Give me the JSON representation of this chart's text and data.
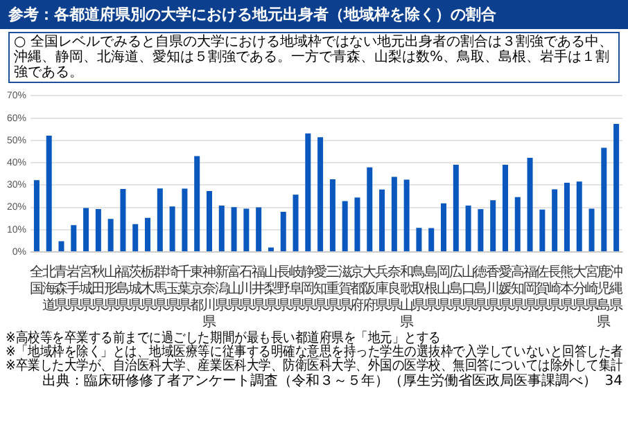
{
  "chart_data": {
    "type": "bar",
    "title": "参考：各都道府県別の大学における地元出身者（地域枠を除く）の割合",
    "subtitle": "○ 全国レベルでみると自県の大学における地域枠ではない地元出身者の割合は３割強である中、沖縄、静岡、北海道、愛知は５割強である。一方で青森、山梨は数%、鳥取、島根、岩手は１割強である。",
    "categories": [
      "全国",
      "北海道",
      "青森県",
      "岩手県",
      "宮城県",
      "秋田県",
      "山形県",
      "福島県",
      "茨城県",
      "栃木県",
      "群馬県",
      "埼玉県",
      "千葉県",
      "東京都",
      "神奈川県",
      "新潟県",
      "富山県",
      "石川県",
      "福井県",
      "山梨県",
      "長野県",
      "岐阜県",
      "静岡県",
      "愛知県",
      "三重県",
      "滋賀県",
      "京都府",
      "大阪府",
      "兵庫県",
      "奈良県",
      "和歌山県",
      "鳥取県",
      "島根県",
      "岡山県",
      "広島県",
      "山口県",
      "徳島県",
      "香川県",
      "愛媛県",
      "高知県",
      "福岡県",
      "佐賀県",
      "長崎県",
      "熊本県",
      "大分県",
      "宮崎県",
      "鹿児島県",
      "沖縄県"
    ],
    "values": [
      32.2,
      52.1,
      4.8,
      12.0,
      19.7,
      19.2,
      14.8,
      28.2,
      12.5,
      15.3,
      28.5,
      20.4,
      28.4,
      43.0,
      27.3,
      20.8,
      20.1,
      19.4,
      20.0,
      2.0,
      18.0,
      25.7,
      53.1,
      51.4,
      32.6,
      22.8,
      24.4,
      37.9,
      28.0,
      33.7,
      32.4,
      10.8,
      10.7,
      21.8,
      39.1,
      20.8,
      19.2,
      23.2,
      39.1,
      24.6,
      42.2,
      19.0,
      28.1,
      31.0,
      31.6,
      19.4,
      46.7,
      57.4
    ],
    "color": "#0a58bd",
    "ylim": [
      0,
      70
    ],
    "yticks": [
      {
        "value": 0,
        "label": "0%"
      },
      {
        "value": 10,
        "label": "10%"
      },
      {
        "value": 20,
        "label": "20%"
      },
      {
        "value": 30,
        "label": "30%"
      },
      {
        "value": 40,
        "label": "40%"
      },
      {
        "value": 50,
        "label": "50%"
      },
      {
        "value": 60,
        "label": "60%"
      },
      {
        "value": 70,
        "label": "70%"
      }
    ],
    "grid": "y",
    "annotations": [
      "※高校等を卒業する前までに過ごした期間が最も長い都道府県を「地元」とする",
      "※「地域枠を除く」とは、地域医療等に従事する明確な意思を持った学生の選抜枠で入学していないと回答した者",
      "※卒業した大学が、自治医科大学、産業医科大学、防衛医科大学、外国の医学校、無回答については除外して集計",
      "出典：臨床研修修了者アンケート調査（令和３～５年）（厚生労働省医政局医事課調べ）",
      "34"
    ]
  }
}
